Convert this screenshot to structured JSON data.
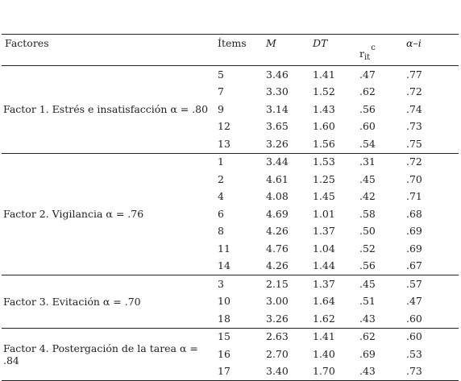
{
  "headers": {
    "factores": "Factores",
    "items": "Ítems",
    "m": "M",
    "dt": "DT",
    "rit_base": "r",
    "rit_sub": "it",
    "rit_sup": "c",
    "alpha_i": "α–i"
  },
  "groups": [
    {
      "label": "Factor 1. Estrés e insatisfacción α = .80",
      "rows": [
        [
          "5",
          "3.46",
          "1.41",
          ".47",
          ".77"
        ],
        [
          "7",
          "3.30",
          "1.52",
          ".62",
          ".72"
        ],
        [
          "9",
          "3.14",
          "1.43",
          ".56",
          ".74"
        ],
        [
          "12",
          "3.65",
          "1.60",
          ".60",
          ".73"
        ],
        [
          "13",
          "3.26",
          "1.56",
          ".54",
          ".75"
        ]
      ]
    },
    {
      "label": "Factor 2. Vigilancia α = .76",
      "rows": [
        [
          "1",
          "3.44",
          "1.53",
          ".31",
          ".72"
        ],
        [
          "2",
          "4.61",
          "1.25",
          ".45",
          ".70"
        ],
        [
          "4",
          "4.08",
          "1.45",
          ".42",
          ".71"
        ],
        [
          "6",
          "4.69",
          "1.01",
          ".58",
          ".68"
        ],
        [
          "8",
          "4.26",
          "1.37",
          ".50",
          ".69"
        ],
        [
          "11",
          "4.76",
          "1.04",
          ".52",
          ".69"
        ],
        [
          "14",
          "4.26",
          "1.44",
          ".56",
          ".67"
        ]
      ]
    },
    {
      "label": "Factor 3. Evitación α = .70",
      "rows": [
        [
          "3",
          "2.15",
          "1.37",
          ".45",
          ".57"
        ],
        [
          "10",
          "3.00",
          "1.64",
          ".51",
          ".47"
        ],
        [
          "18",
          "3.26",
          "1.62",
          ".43",
          ".60"
        ]
      ]
    },
    {
      "label": "Factor 4. Postergación de la tarea α = .84",
      "rows": [
        [
          "15",
          "2.63",
          "1.41",
          ".62",
          ".60"
        ],
        [
          "16",
          "2.70",
          "1.40",
          ".69",
          ".53"
        ],
        [
          "17",
          "3.40",
          "1.70",
          ".43",
          ".73"
        ]
      ]
    }
  ]
}
